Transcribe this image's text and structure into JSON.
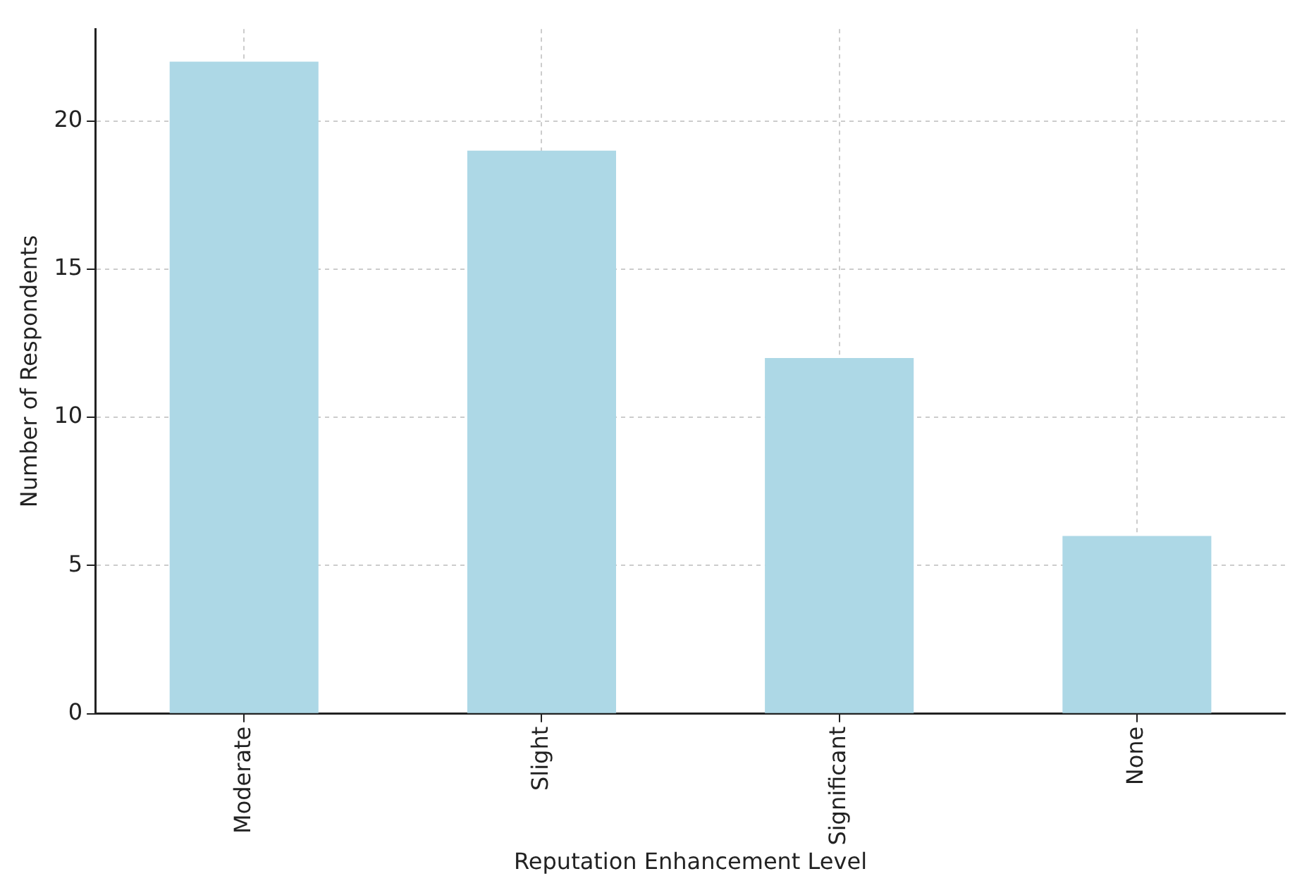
{
  "chart_data": {
    "type": "bar",
    "xlabel": "Reputation Enhancement Level",
    "ylabel": "Number of Respondents",
    "categories": [
      "Moderate",
      "Slight",
      "Significant",
      "None"
    ],
    "values": [
      22,
      19,
      12,
      6
    ],
    "color": "#add8e6",
    "ylim": [
      0,
      23.1
    ],
    "yticks": [
      0,
      5,
      10,
      15,
      20
    ],
    "grid": true
  }
}
